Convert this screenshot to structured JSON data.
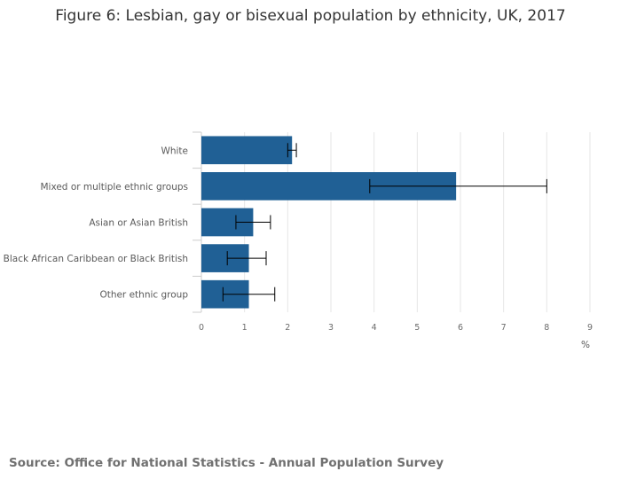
{
  "chart_data": {
    "type": "bar",
    "orientation": "horizontal",
    "title": "Figure 6: Lesbian, gay or bisexual population by ethnicity, UK, 2017",
    "categories": [
      "White",
      "Mixed or multiple ethnic groups",
      "Asian or Asian British",
      "Black African Caribbean or Black British",
      "Other ethnic group"
    ],
    "values": [
      2.1,
      5.9,
      1.2,
      1.1,
      1.1
    ],
    "error_lower": [
      2.0,
      3.9,
      0.8,
      0.6,
      0.5
    ],
    "error_upper": [
      2.2,
      8.0,
      1.6,
      1.5,
      1.7
    ],
    "xlabel": "%",
    "ylabel": "",
    "xlim": [
      0,
      9
    ],
    "xticks": [
      "0",
      "1",
      "2",
      "3",
      "4",
      "5",
      "6",
      "7",
      "8",
      "9"
    ],
    "grid": true,
    "bar_color": "#206095"
  },
  "source": "Source: Office for National Statistics - Annual Population Survey"
}
